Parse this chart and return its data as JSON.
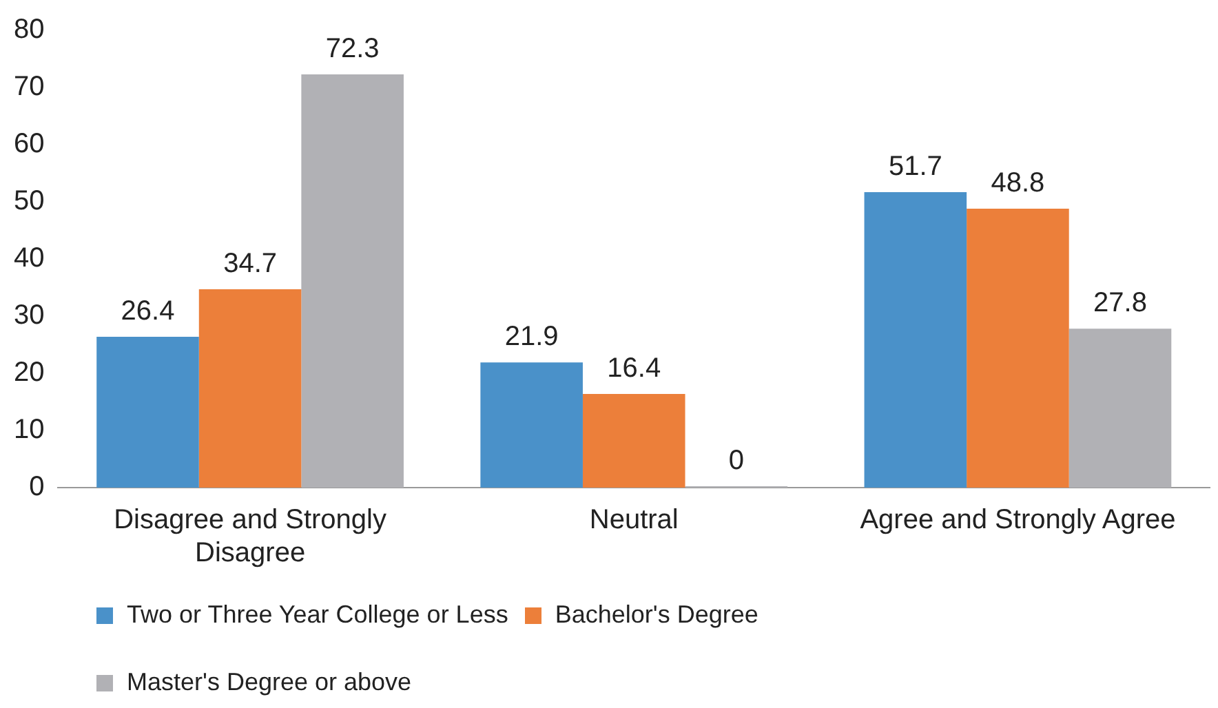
{
  "chart_data": {
    "type": "bar",
    "categories": [
      "Disagree and Strongly Disagree",
      "Neutral",
      "Agree and Strongly Agree"
    ],
    "series": [
      {
        "name": "Two or Three Year College or Less",
        "color": "#4a91c9",
        "values": [
          26.4,
          21.9,
          51.7
        ]
      },
      {
        "name": "Bachelor's Degree",
        "color": "#ec7f3a",
        "values": [
          34.7,
          16.4,
          48.8
        ]
      },
      {
        "name": "Master's Degree or above",
        "color": "#b1b1b5",
        "values": [
          72.3,
          0,
          27.8
        ]
      }
    ],
    "ylim": [
      0,
      80
    ],
    "yticks": [
      0,
      10,
      20,
      30,
      40,
      50,
      60,
      70,
      80
    ],
    "grid": false,
    "legend": "bottom",
    "data_labels": true
  }
}
